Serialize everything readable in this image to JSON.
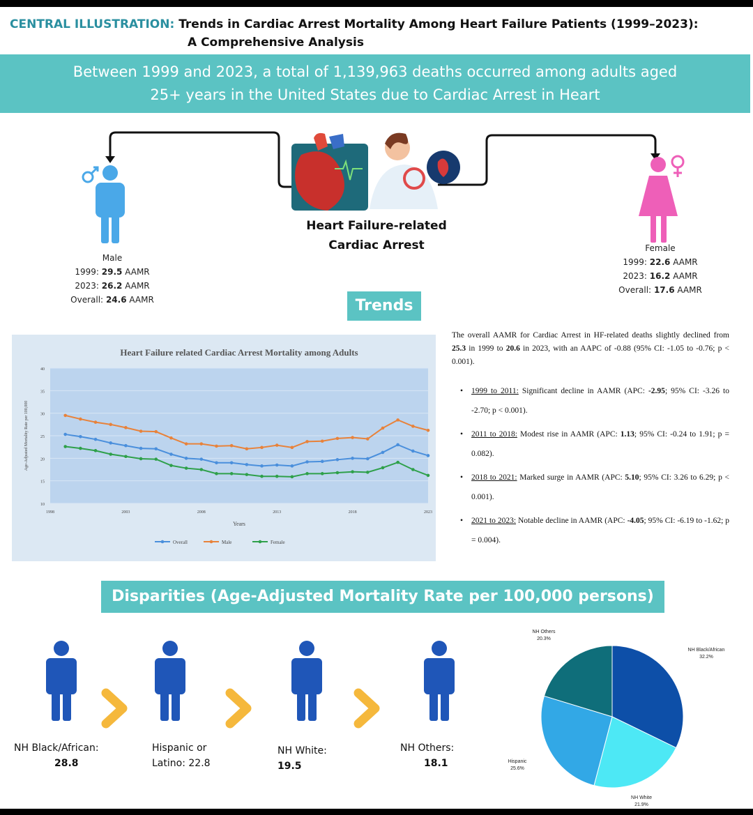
{
  "header": {
    "label": "CENTRAL ILLUSTRATION:",
    "title_line1": "Trends in Cardiac Arrest Mortality Among Heart Failure Patients (1999–2023):",
    "title_line2": "A Comprehensive Analysis"
  },
  "banner": {
    "line1": "Between 1999 and 2023, a total of 1,139,963 deaths occurred among adults aged",
    "line2": "25+ years in the United States due to Cardiac Arrest in Heart"
  },
  "center": {
    "line1": "Heart Failure-related",
    "line2": "Cardiac Arrest"
  },
  "male": {
    "label": "Male",
    "y1999_label": "1999:",
    "y1999_value": "29.5",
    "y1999_unit": "AAMR",
    "y2023_label": "2023:",
    "y2023_value": "26.2",
    "y2023_unit": "AAMR",
    "overall_label": "Overall:",
    "overall_value": "24.6",
    "overall_unit": "AAMR"
  },
  "female": {
    "label": "Female",
    "y1999_label": "1999:",
    "y1999_value": "22.6",
    "y1999_unit": "AAMR",
    "y2023_label": "2023:",
    "y2023_value": "16.2",
    "y2023_unit": "AAMR",
    "overall_label": "Overall:",
    "overall_value": "17.6",
    "overall_unit": "AAMR"
  },
  "colors": {
    "teal": "#5bc3c3",
    "header_label": "#2a8fa0",
    "male_blue": "#4aa8e8",
    "female_pink": "#ee5fb8",
    "people_blue": "#1f56b8",
    "chevron": "#f5b83c",
    "overall": "#4a8fdc",
    "male_line": "#e8823a",
    "female_line": "#2ea04a"
  },
  "trends": {
    "pill_label": "Trends",
    "summary_pre": "The overall AAMR for Cardiac Arrest in HF-related deaths slightly declined from ",
    "summary_v1": "25.3",
    "summary_mid": " in 1999 to ",
    "summary_v2": "20.6",
    "summary_post": " in 2023, with an AAPC of -0.88 (95% CI: -1.05 to -0.76; p < 0.001).",
    "items": [
      {
        "period": "1999 to 2011:",
        "pre": " Significant decline in AAMR (APC: ",
        "value": "-2.95",
        "post": "; 95% CI: -3.26 to -2.70; p < 0.001)."
      },
      {
        "period": "2011 to 2018:",
        "pre": " Modest rise in AAMR (APC: ",
        "value": "1.13",
        "post": "; 95% CI: -0.24 to 1.91; p = 0.082)."
      },
      {
        "period": "2018 to 2021:",
        "pre": " Marked surge in AAMR (APC: ",
        "value": "5.10",
        "post": "; 95% CI: 3.26 to 6.29; p < 0.001)."
      },
      {
        "period": "2021 to 2023:",
        "pre": " Notable decline in AAMR (APC: ",
        "value": "-4.05",
        "post": "; 95% CI: -6.19 to -1.62; p = 0.004)."
      }
    ]
  },
  "chart_data": [
    {
      "type": "line",
      "title": "Heart Failure related Cardiac Arrest Mortality among Adults",
      "xlabel": "Years",
      "ylabel": "Age-Adjusted Mortality Rate per 100,000",
      "x": [
        1999,
        2000,
        2001,
        2002,
        2003,
        2004,
        2005,
        2006,
        2007,
        2008,
        2009,
        2010,
        2011,
        2012,
        2013,
        2014,
        2015,
        2016,
        2017,
        2018,
        2019,
        2020,
        2021,
        2022,
        2023
      ],
      "xticks": [
        "1998",
        "2003",
        "2008",
        "2013",
        "2018",
        "2023"
      ],
      "xtick_values": [
        1998,
        2003,
        2008,
        2013,
        2018,
        2023
      ],
      "yticks": [
        "10",
        "15",
        "20",
        "25",
        "30",
        "35",
        "40"
      ],
      "ylim": [
        10,
        40
      ],
      "xlim": [
        1998,
        2023
      ],
      "grid": true,
      "legend_position": "bottom",
      "series": [
        {
          "name": "Overall",
          "color": "#4a8fdc",
          "values": [
            25.3,
            24.8,
            24.2,
            23.4,
            22.8,
            22.2,
            22.1,
            20.9,
            20.0,
            19.8,
            19.0,
            19.0,
            18.6,
            18.3,
            18.5,
            18.3,
            19.2,
            19.3,
            19.7,
            20.0,
            19.9,
            21.3,
            23.0,
            21.6,
            20.6
          ]
        },
        {
          "name": "Male",
          "color": "#e8823a",
          "values": [
            29.5,
            28.7,
            28.0,
            27.5,
            26.8,
            26.0,
            25.9,
            24.5,
            23.2,
            23.2,
            22.7,
            22.8,
            22.1,
            22.4,
            22.9,
            22.4,
            23.7,
            23.8,
            24.4,
            24.6,
            24.3,
            26.7,
            28.5,
            27.1,
            26.2
          ]
        },
        {
          "name": "Female",
          "color": "#2ea04a",
          "values": [
            22.6,
            22.2,
            21.7,
            20.9,
            20.4,
            19.9,
            19.8,
            18.4,
            17.8,
            17.5,
            16.6,
            16.6,
            16.4,
            16.0,
            16.0,
            15.9,
            16.6,
            16.6,
            16.8,
            17.0,
            16.9,
            17.9,
            19.1,
            17.5,
            16.2
          ]
        }
      ]
    },
    {
      "type": "pie",
      "slices": [
        {
          "name": "NH Black/African",
          "value": 32.2,
          "label": "32.2%",
          "color": "#0d4fa8"
        },
        {
          "name": "NH White",
          "value": 21.9,
          "label": "21.9%",
          "color": "#4de8f5"
        },
        {
          "name": "Hispanic",
          "value": 25.6,
          "label": "25.6%",
          "color": "#32a8e6"
        },
        {
          "name": "NH Others",
          "value": 20.3,
          "label": "20.3%",
          "color": "#0f6e7a"
        }
      ]
    }
  ],
  "disparities": {
    "pill_label": "Disparities (Age-Adjusted Mortality Rate per 100,000 persons)",
    "groups": [
      {
        "label": "NH Black/African:",
        "value": "28.8"
      },
      {
        "label": "Hispanic or",
        "label2": "Latino:",
        "value": "22.8"
      },
      {
        "label": "NH White:",
        "value": "19.5"
      },
      {
        "label": "NH  Others:",
        "value": "18.1"
      }
    ]
  }
}
